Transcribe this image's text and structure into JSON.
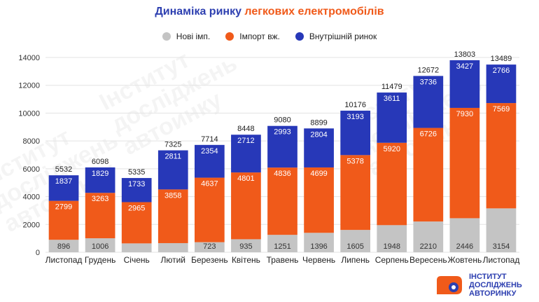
{
  "title_part1": "Динаміка ринку",
  "title_part2": "легкових електромобілів",
  "legend": [
    {
      "label": "Нові імп.",
      "color": "#c4c4c4"
    },
    {
      "label": "Імпорт вж.",
      "color": "#f05a1a"
    },
    {
      "label": "Внутрішній ринок",
      "color": "#2738b8"
    }
  ],
  "logo": {
    "line1": "ІНСТИТУТ",
    "line2": "ДОСЛІДЖЕНЬ",
    "line3": "АВТОРИНКУ"
  },
  "watermark": "Інститут\nдосліджень\nавторинку",
  "chart_data": {
    "type": "bar",
    "stacked": true,
    "categories": [
      "Листопад",
      "Грудень",
      "Січень",
      "Лютий",
      "Березень",
      "Квітень",
      "Травень",
      "Червень",
      "Липень",
      "Серпень",
      "Вересень",
      "Жовтень",
      "Листопад"
    ],
    "series": [
      {
        "name": "Нові імп.",
        "color": "#c4c4c4",
        "values": [
          896,
          1006,
          637,
          656,
          723,
          935,
          1251,
          1396,
          1605,
          1948,
          2210,
          2446,
          3154
        ],
        "labels": [
          "896",
          "1006",
          "",
          "",
          "723",
          "935",
          "1251",
          "1396",
          "1605",
          "1948",
          "2210",
          "2446",
          "3154"
        ]
      },
      {
        "name": "Імпорт вж.",
        "color": "#f05a1a",
        "values": [
          2799,
          3263,
          2965,
          3858,
          4637,
          4801,
          4836,
          4699,
          5378,
          5920,
          6726,
          7930,
          7569
        ]
      },
      {
        "name": "Внутрішній ринок",
        "color": "#2738b8",
        "values": [
          1837,
          1829,
          1733,
          2811,
          2354,
          2712,
          2993,
          2804,
          3193,
          3611,
          3736,
          3427,
          2766
        ]
      }
    ],
    "totals": [
      5532,
      6098,
      5335,
      7325,
      7714,
      8448,
      9080,
      8899,
      10176,
      11479,
      12672,
      13803,
      13489
    ],
    "ylim": [
      0,
      14000
    ],
    "yticks": [
      0,
      2000,
      4000,
      6000,
      8000,
      10000,
      12000,
      14000
    ],
    "grid": true,
    "legend_position": "top"
  }
}
